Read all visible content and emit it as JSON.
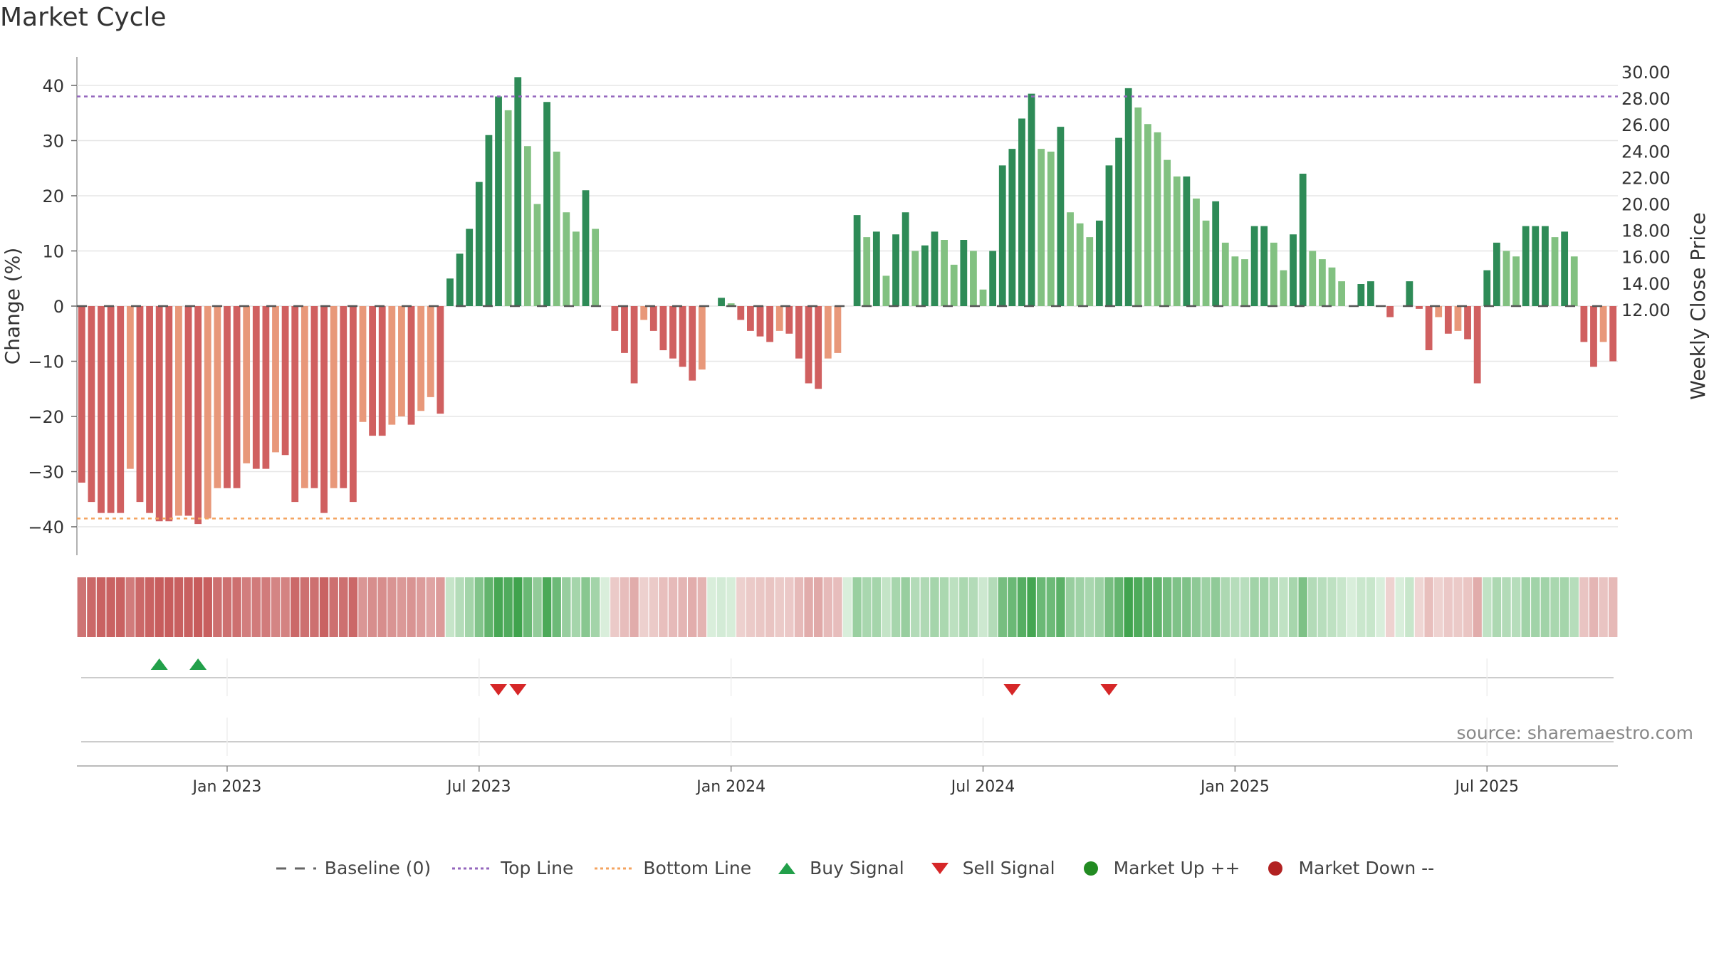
{
  "title": "Market Cycle",
  "source_text": "source: sharemaestro.com",
  "chart_data": {
    "type": "bar",
    "ylabel_left": "Change (%)",
    "ylabel_right": "Weekly Close Price",
    "ylim_left": [
      -45,
      45
    ],
    "left_ticks": [
      40,
      30,
      20,
      10,
      0,
      -10,
      -20,
      -30,
      -40
    ],
    "left_tick_labels": [
      "40",
      "30",
      "20",
      "10",
      "0",
      "−10",
      "−20",
      "−30",
      "−40"
    ],
    "right_ticks": [
      "30.00",
      "28.00",
      "26.00",
      "24.00",
      "22.00",
      "20.00",
      "18.00",
      "16.00",
      "14.00",
      "12.00"
    ],
    "x_tick_labels": [
      "Jan 2023",
      "Jul 2023",
      "Jan 2024",
      "Jul 2024",
      "Jan 2025",
      "Jul 2025"
    ],
    "x_tick_week_index": [
      15,
      41,
      67,
      93,
      119,
      145
    ],
    "top_line": 38,
    "bottom_line": -38.5,
    "values": [
      -32,
      -35.5,
      -37.5,
      -37.5,
      -37.5,
      -29.5,
      -35.5,
      -37.5,
      -39,
      -39,
      -38,
      -38,
      -39.5,
      -38.5,
      -33,
      -33,
      -33,
      -28.5,
      -29.5,
      -29.5,
      -26.5,
      -27,
      -35.5,
      -33,
      -33,
      -37.5,
      -33,
      -33,
      -35.5,
      -21,
      -23.5,
      -23.5,
      -21.5,
      -20,
      -21.5,
      -19,
      -16.5,
      -19.5,
      5,
      9.5,
      14,
      22.5,
      31,
      38,
      35.5,
      41.5,
      29,
      18.5,
      37,
      28,
      17,
      13.5,
      21,
      14,
      0,
      -4.5,
      -8.5,
      -14,
      -2.5,
      -4.5,
      -8,
      -9.5,
      -11,
      -13.5,
      -11.5,
      0,
      1.5,
      0.5,
      -2.5,
      -4.5,
      -5.5,
      -6.5,
      -4.5,
      -5,
      -9.5,
      -14,
      -15,
      -9.5,
      -8.5,
      0,
      16.5,
      12.5,
      13.5,
      5.5,
      13,
      17,
      10,
      11,
      13.5,
      12,
      7.5,
      12,
      10,
      3,
      10,
      25.5,
      28.5,
      34,
      38.5,
      28.5,
      28,
      32.5,
      17,
      15,
      12.5,
      15.5,
      25.5,
      30.5,
      39.5,
      36,
      33,
      31.5,
      26.5,
      23.5,
      23.5,
      19.5,
      15.5,
      19,
      11.5,
      9,
      8.5,
      14.5,
      14.5,
      11.5,
      6.5,
      13,
      24,
      10,
      8.5,
      7,
      4.5,
      0,
      4,
      4.5,
      0,
      -2,
      0,
      4.5,
      -0.5,
      -8,
      -2,
      -5,
      -4.5,
      -6,
      -14,
      6.5,
      11.5,
      10,
      9,
      14.5,
      14.5,
      14.5,
      12.5,
      13.5,
      9,
      -6.5,
      -11,
      -6.5,
      -10
    ],
    "signals": {
      "buy_week_index": [
        8,
        12
      ],
      "sell_week_index": [
        43,
        45,
        96,
        106
      ]
    },
    "colors": {
      "up_strong": "#2e8b57",
      "up_weak": "#82c181",
      "down_strong": "#d06060",
      "down_weak": "#e8987a",
      "top_line": "#9467bd",
      "bottom_line": "#f4a460",
      "buy": "#22a04a",
      "sell": "#d62728",
      "market_up": "#228b22",
      "market_down": "#b22222"
    },
    "legend": [
      {
        "label": "Baseline (0)",
        "icon": "dash-line-icon"
      },
      {
        "label": "Top Line",
        "icon": "dotted-purple-line-icon"
      },
      {
        "label": "Bottom Line",
        "icon": "dotted-orange-line-icon"
      },
      {
        "label": "Buy Signal",
        "icon": "triangle-up-icon"
      },
      {
        "label": "Sell Signal",
        "icon": "triangle-down-icon"
      },
      {
        "label": "Market Up ++",
        "icon": "green-dot-icon"
      },
      {
        "label": "Market Down --",
        "icon": "red-dot-icon"
      }
    ]
  }
}
